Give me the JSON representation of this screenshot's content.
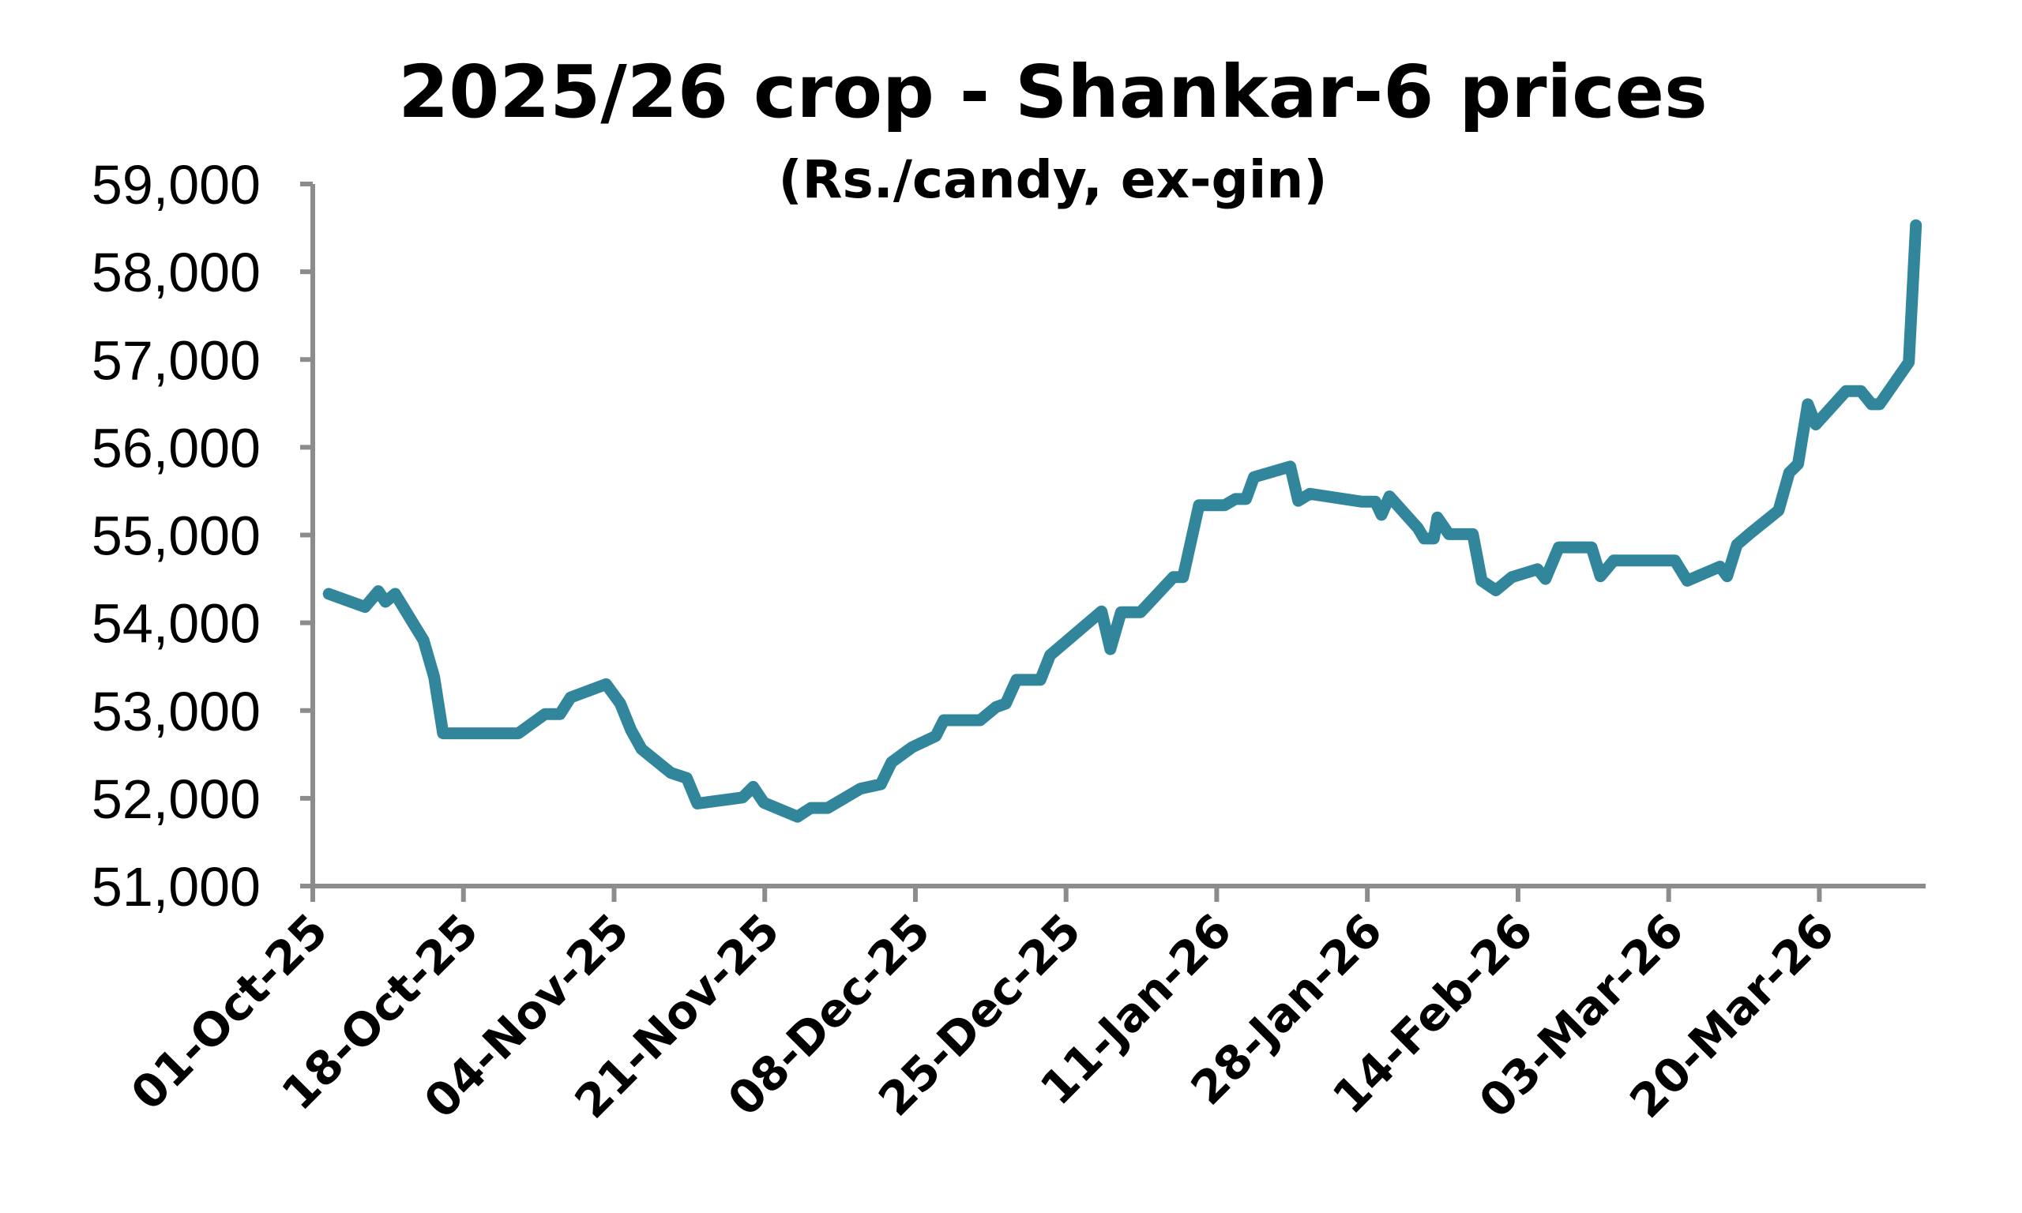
{
  "chart_data": {
    "type": "line",
    "title": "2025/26 crop - Shankar-6 prices",
    "subtitle": "(Rs./candy, ex-gin)",
    "xlabel": "",
    "ylabel": "",
    "ylim": [
      51000,
      59000
    ],
    "y_ticks": [
      51000,
      52000,
      53000,
      54000,
      55000,
      56000,
      57000,
      58000,
      59000
    ],
    "y_tick_labels": [
      "51,000",
      "52,000",
      "53,000",
      "54,000",
      "55,000",
      "56,000",
      "57,000",
      "58,000",
      "59,000"
    ],
    "x_unit": "days since 01-Oct-25",
    "xlim": [
      0,
      182
    ],
    "x_tick_step_days": 17,
    "x_tick_labels": [
      "01-Oct-25",
      "18-Oct-25",
      "04-Nov-25",
      "21-Nov-25",
      "08-Dec-25",
      "25-Dec-25",
      "11-Jan-26",
      "28-Jan-26",
      "14-Feb-26",
      "03-Mar-26",
      "20-Mar-26"
    ],
    "grid": false,
    "legend": "none",
    "line_color": "#32869c",
    "axis_color": "#8c8c8c",
    "series": [
      {
        "name": "Shankar-6",
        "x": [
          1.8,
          5.9,
          7.4,
          8.2,
          9.3,
          12.5,
          13.7,
          14.7,
          23.2,
          26.2,
          27.9,
          29.1,
          33.1,
          34.7,
          35.9,
          37.1,
          40.4,
          42.2,
          43.4,
          48.5,
          49.7,
          50.9,
          54.7,
          56.2,
          58.1,
          61.8,
          64.1,
          65.3,
          67.6,
          70.3,
          71.2,
          75.3,
          77.1,
          78.2,
          79.4,
          82.1,
          83.2,
          89,
          90,
          91.2,
          93.4,
          97.1,
          98.2,
          100,
          102.9,
          104.1,
          105.3,
          106.2,
          110.3,
          111.2,
          112.5,
          118.4,
          119.9,
          120.6,
          121.5,
          124.7,
          125.4,
          126.5,
          126.9,
          128.2,
          130.9,
          131.9,
          133.5,
          135.3,
          138.2,
          139.1,
          140.6,
          144.3,
          145.3,
          146.8,
          153.7,
          155.1,
          158.8,
          159.6,
          160.7,
          162.2,
          165.4,
          166.6,
          167.6,
          168.7,
          169.6,
          173,
          174.7,
          175.9,
          176.8,
          180.1,
          180.9
        ],
        "values": [
          54330,
          54180,
          54360,
          54240,
          54330,
          53800,
          53380,
          52740,
          52740,
          52960,
          52960,
          53150,
          53300,
          53080,
          52780,
          52560,
          52290,
          52230,
          51940,
          52010,
          52130,
          51950,
          51790,
          51890,
          51890,
          52110,
          52160,
          52410,
          52580,
          52710,
          52890,
          52890,
          53040,
          53080,
          53350,
          53350,
          53630,
          54130,
          53700,
          54120,
          54120,
          54520,
          54520,
          55340,
          55340,
          55410,
          55410,
          55660,
          55780,
          55390,
          55470,
          55380,
          55380,
          55230,
          55440,
          55080,
          54960,
          54960,
          55200,
          55010,
          55010,
          54480,
          54370,
          54520,
          54610,
          54500,
          54860,
          54860,
          54530,
          54710,
          54710,
          54480,
          54640,
          54530,
          54890,
          55020,
          55280,
          55710,
          55810,
          56490,
          56260,
          56640,
          56640,
          56490,
          56490,
          56970,
          58530
        ]
      }
    ]
  }
}
